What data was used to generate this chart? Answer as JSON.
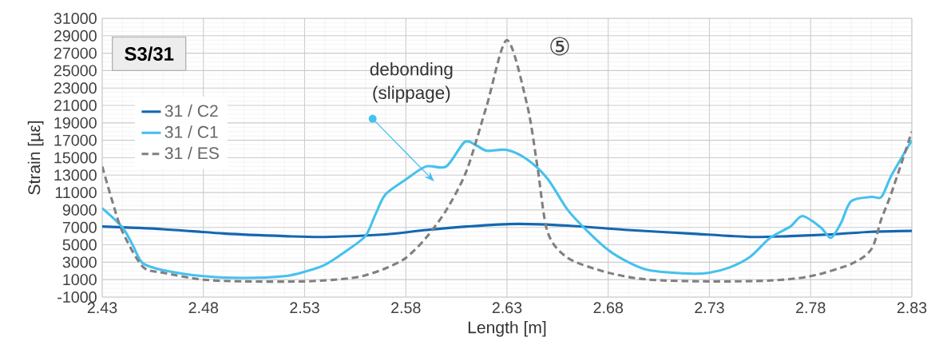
{
  "chart_data": {
    "type": "line",
    "title": "S3/31",
    "xlabel": "Length [m]",
    "ylabel": "Strain [µε]",
    "xlim": [
      2.43,
      2.83
    ],
    "xticks": [
      2.43,
      2.48,
      2.53,
      2.58,
      2.63,
      2.68,
      2.73,
      2.78,
      2.83
    ],
    "ylim": [
      -1000,
      31000
    ],
    "yticks": [
      -1000,
      1000,
      3000,
      5000,
      7000,
      9000,
      11000,
      13000,
      15000,
      17000,
      19000,
      21000,
      23000,
      25000,
      27000,
      29000,
      31000
    ],
    "grid": true,
    "legend": "top left",
    "series": [
      {
        "name": "31 / C2",
        "color": "#1467b3",
        "line_style": "solid",
        "x": [
          2.43,
          2.46,
          2.49,
          2.52,
          2.54,
          2.57,
          2.59,
          2.61,
          2.635,
          2.66,
          2.69,
          2.72,
          2.75,
          2.77,
          2.79,
          2.81,
          2.83
        ],
        "values": [
          7100,
          6800,
          6300,
          6000,
          5900,
          6200,
          6700,
          7100,
          7400,
          7200,
          6700,
          6300,
          5900,
          6000,
          6200,
          6500,
          6600
        ]
      },
      {
        "name": "31 / C1",
        "color": "#45c1ee",
        "line_style": "solid",
        "x": [
          2.43,
          2.44,
          2.445,
          2.45,
          2.46,
          2.48,
          2.5,
          2.52,
          2.53,
          2.54,
          2.55,
          2.56,
          2.565,
          2.57,
          2.58,
          2.59,
          2.6,
          2.609,
          2.615,
          2.62,
          2.63,
          2.64,
          2.65,
          2.66,
          2.67,
          2.68,
          2.69,
          2.7,
          2.72,
          2.73,
          2.74,
          2.75,
          2.76,
          2.77,
          2.776,
          2.785,
          2.79,
          2.795,
          2.8,
          2.81,
          2.815,
          2.82,
          2.83
        ],
        "values": [
          9200,
          7000,
          5000,
          2900,
          2100,
          1400,
          1200,
          1400,
          1900,
          2700,
          4200,
          6000,
          8500,
          10800,
          12500,
          14000,
          14000,
          16800,
          16400,
          15800,
          15900,
          14800,
          12600,
          9000,
          6500,
          4400,
          3000,
          2100,
          1700,
          1800,
          2400,
          3600,
          5800,
          7100,
          8300,
          7000,
          5800,
          7500,
          10000,
          10500,
          10500,
          13000,
          17000
        ]
      },
      {
        "name": "31 / ES",
        "color": "#808080",
        "line_style": "dashed",
        "x": [
          2.43,
          2.435,
          2.44,
          2.45,
          2.46,
          2.48,
          2.5,
          2.53,
          2.55,
          2.56,
          2.57,
          2.58,
          2.59,
          2.6,
          2.61,
          2.62,
          2.63,
          2.64,
          2.645,
          2.65,
          2.66,
          2.68,
          2.7,
          2.73,
          2.76,
          2.78,
          2.8,
          2.81,
          2.815,
          2.82,
          2.83
        ],
        "values": [
          14000,
          10000,
          6500,
          2500,
          1800,
          1000,
          800,
          800,
          1100,
          1500,
          2300,
          3500,
          5800,
          9000,
          13500,
          21000,
          28500,
          21000,
          14000,
          6500,
          3500,
          1800,
          1000,
          800,
          900,
          1400,
          2800,
          4500,
          8000,
          11000,
          18000
        ]
      }
    ],
    "annotations": [
      "debonding\n(slippage)",
      "⑤"
    ]
  }
}
